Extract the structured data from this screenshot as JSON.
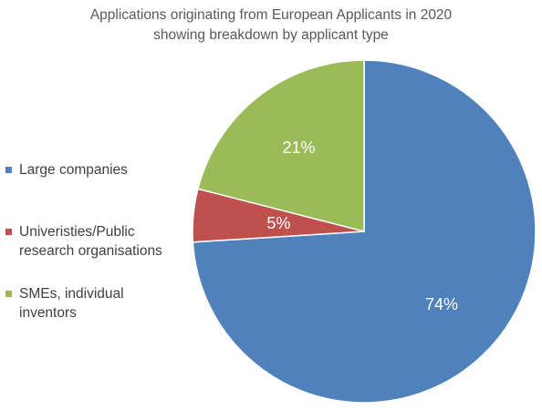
{
  "chart_data": {
    "type": "pie",
    "title": [
      "Applications originating from European Applicants in 2020",
      "showing breakdown by applicant type"
    ],
    "categories": [
      "Large companies",
      "Univeristies/Public research organisations",
      "SMEs, individual inventors"
    ],
    "values": [
      74,
      5,
      21
    ],
    "data_labels": [
      "74%",
      "5%",
      "21%"
    ],
    "colors": [
      "#4f81bd",
      "#c0504d",
      "#9bbb59"
    ],
    "legend_position": "left"
  }
}
